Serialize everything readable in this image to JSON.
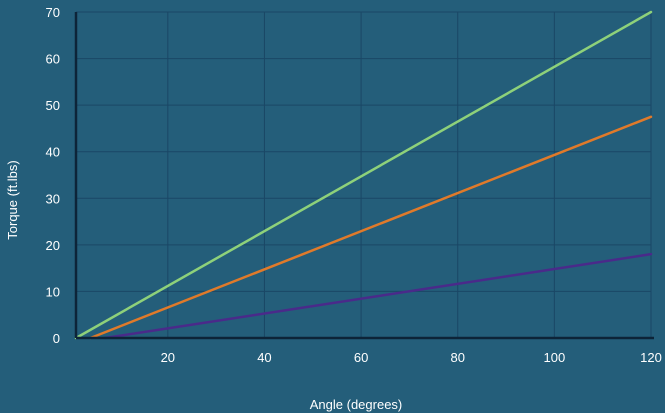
{
  "colors": {
    "background": "#245e7a",
    "grid": "#1a4766",
    "axis": "#0d2438",
    "text": "#ffffff"
  },
  "chart_data": {
    "type": "line",
    "title": "",
    "xlabel": "Angle (degrees)",
    "ylabel": "Torque (ft.lbs)",
    "xlim": [
      1,
      120
    ],
    "ylim": [
      0,
      70
    ],
    "x_ticks": [
      20,
      40,
      60,
      80,
      100,
      120
    ],
    "y_ticks": [
      0,
      10,
      20,
      30,
      40,
      50,
      60,
      70
    ],
    "grid": true,
    "legend": "none",
    "series": [
      {
        "color": "#8ed17a",
        "points": [
          [
            1,
            0
          ],
          [
            120,
            70
          ]
        ]
      },
      {
        "color": "#e07a2a",
        "points": [
          [
            4,
            0
          ],
          [
            120,
            47.5
          ]
        ]
      },
      {
        "color": "#4a2a8a",
        "points": [
          [
            7,
            0
          ],
          [
            120,
            18
          ]
        ]
      }
    ]
  }
}
